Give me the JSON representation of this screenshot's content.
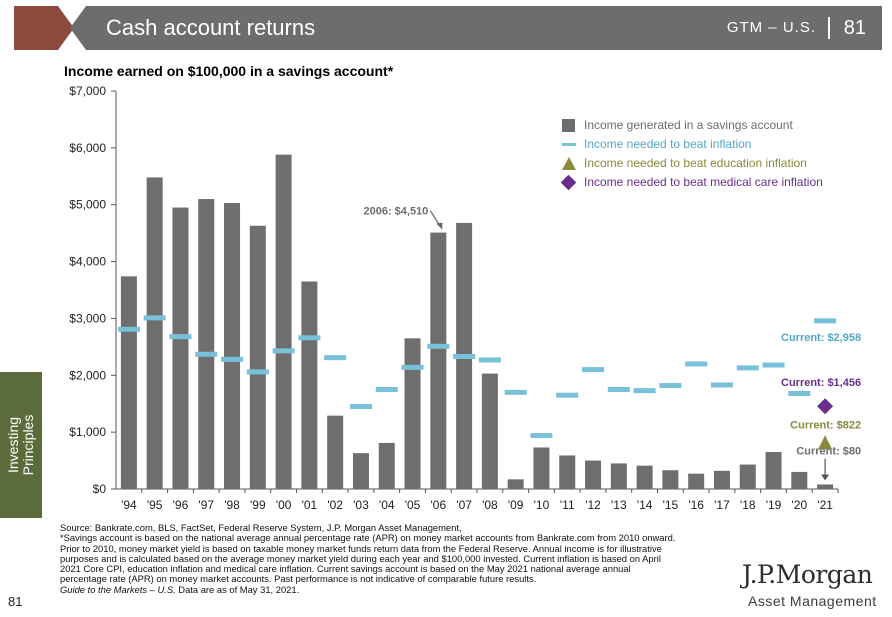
{
  "header": {
    "title": "Cash account returns",
    "gtm_label": "GTM – U.S.",
    "page_number": "81"
  },
  "side_tab": {
    "line1": "Investing",
    "line2": "Principles"
  },
  "footer_page_number": "81",
  "chart_title": "Income earned on $100,000 in a savings account*",
  "chart_data": {
    "type": "bar",
    "title": "Income earned on $100,000 in a savings account*",
    "xlabel": "",
    "ylabel": "",
    "ylim": [
      0,
      7000
    ],
    "y_ticks": [
      "$0",
      "$1,000",
      "$2,000",
      "$3,000",
      "$4,000",
      "$5,000",
      "$6,000",
      "$7,000"
    ],
    "categories": [
      "'94",
      "'95",
      "'96",
      "'97",
      "'98",
      "'99",
      "'00",
      "'01",
      "'02",
      "'03",
      "'04",
      "'05",
      "'06",
      "'07",
      "'08",
      "'09",
      "'10",
      "'11",
      "'12",
      "'13",
      "'14",
      "'15",
      "'16",
      "'17",
      "'18",
      "'19",
      "'20",
      "'21"
    ],
    "series": [
      {
        "name": "Income generated in a savings account",
        "type": "bar",
        "color": "#6e6e6e",
        "values": [
          3740,
          5480,
          4950,
          5100,
          5030,
          4630,
          5880,
          3650,
          1290,
          630,
          810,
          2650,
          4510,
          4680,
          2030,
          170,
          730,
          590,
          500,
          450,
          410,
          330,
          270,
          320,
          430,
          650,
          300,
          80
        ]
      },
      {
        "name": "Income needed to beat inflation",
        "type": "dash",
        "color": "#79c0d9",
        "values": [
          2810,
          3010,
          2680,
          2370,
          2280,
          2060,
          2430,
          2660,
          2310,
          1450,
          1750,
          2140,
          2510,
          2330,
          2270,
          1700,
          940,
          1650,
          2100,
          1750,
          1730,
          1820,
          2200,
          1830,
          2130,
          2180,
          1680,
          2958
        ]
      },
      {
        "name": "Income needed to beat education inflation",
        "type": "triangle",
        "color": "#8a8a3b",
        "values": [
          null,
          null,
          null,
          null,
          null,
          null,
          null,
          null,
          null,
          null,
          null,
          null,
          null,
          null,
          null,
          null,
          null,
          null,
          null,
          null,
          null,
          null,
          null,
          null,
          null,
          null,
          null,
          822
        ]
      },
      {
        "name": "Income needed to beat medical care inflation",
        "type": "diamond",
        "color": "#6a2e8e",
        "values": [
          null,
          null,
          null,
          null,
          null,
          null,
          null,
          null,
          null,
          null,
          null,
          null,
          null,
          null,
          null,
          null,
          null,
          null,
          null,
          null,
          null,
          null,
          null,
          null,
          null,
          null,
          null,
          1456
        ]
      }
    ],
    "annotations": [
      {
        "text": "2006: $4,510",
        "category": "'06",
        "color": "#6e6e6e"
      },
      {
        "text": "Current: $2,958",
        "category": "'21",
        "color": "#54a8c8"
      },
      {
        "text": "Current: $1,456",
        "category": "'21",
        "color": "#6a2e8e"
      },
      {
        "text": "Current: $822",
        "category": "'21",
        "color": "#8a8a3b"
      },
      {
        "text": "Current: $80",
        "category": "'21",
        "color": "#6e6e6e"
      }
    ],
    "legend_placement": "top-right",
    "grid": false
  },
  "legend": {
    "bar": "Income generated in a savings account",
    "inflation": "Income needed to beat inflation",
    "education": "Income needed to beat education inflation",
    "medical": "Income needed to beat medical care inflation"
  },
  "footnotes": {
    "source": "Source: Bankrate.com, BLS, FactSet, Federal Reserve System, J.P. Morgan Asset Management,",
    "note1": "*Savings account is based on the national average annual percentage rate (APR) on money market accounts from Bankrate.com from 2010 onward.",
    "note2": "Prior to 2010, money market yield is based on taxable money market funds return data from the Federal Reserve. Annual income is for illustrative",
    "note3": "purposes and is calculated based on the average money market yield during each year and $100,000 invested. Current inflation is based on April",
    "note4": "2021 Core CPI, education inflation and medical care inflation. Current savings account is based on the May 2021 national average annual",
    "note5": "percentage rate (APR) on money market accounts. Past performance is not indicative of comparable future results.",
    "guide_italic": "Guide to the Markets – U.S.",
    "guide_rest": " Data are as of May 31, 2021."
  },
  "logo": {
    "main": "J.P.Morgan",
    "sub": "Asset Management"
  }
}
